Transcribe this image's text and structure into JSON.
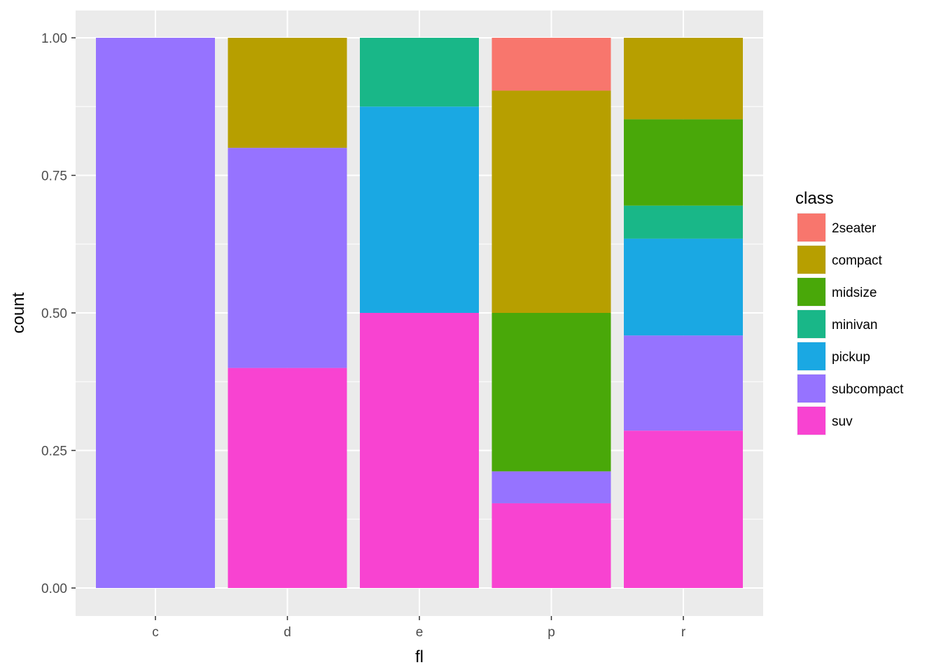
{
  "chart_data": {
    "type": "bar",
    "stacked": true,
    "position": "fill",
    "xlabel": "fl",
    "ylabel": "count",
    "categories": [
      "c",
      "d",
      "e",
      "p",
      "r"
    ],
    "ylim": [
      0,
      1
    ],
    "yticks": [
      "0.00",
      "0.25",
      "0.50",
      "0.75",
      "1.00"
    ],
    "ytick_values": [
      0,
      0.25,
      0.5,
      0.75,
      1
    ],
    "grid": true,
    "legend": {
      "title": "class",
      "placement": "right"
    },
    "series": [
      {
        "name": "2seater",
        "color": "#F8766D",
        "values": [
          0,
          0,
          0,
          0.096,
          0
        ]
      },
      {
        "name": "compact",
        "color": "#B79F00",
        "values": [
          0,
          0.2,
          0,
          0.404,
          0.148
        ]
      },
      {
        "name": "midsize",
        "color": "#49A809",
        "values": [
          0,
          0,
          0,
          0.288,
          0.157
        ]
      },
      {
        "name": "minivan",
        "color": "#19B788",
        "values": [
          0,
          0,
          0.125,
          0,
          0.06
        ]
      },
      {
        "name": "pickup",
        "color": "#1AA8E3",
        "values": [
          0,
          0,
          0.375,
          0,
          0.176
        ]
      },
      {
        "name": "subcompact",
        "color": "#9673FF",
        "values": [
          1,
          0.4,
          0,
          0.058,
          0.173
        ]
      },
      {
        "name": "suv",
        "color": "#F843D1",
        "values": [
          0,
          0.4,
          0.5,
          0.154,
          0.286
        ]
      }
    ]
  }
}
